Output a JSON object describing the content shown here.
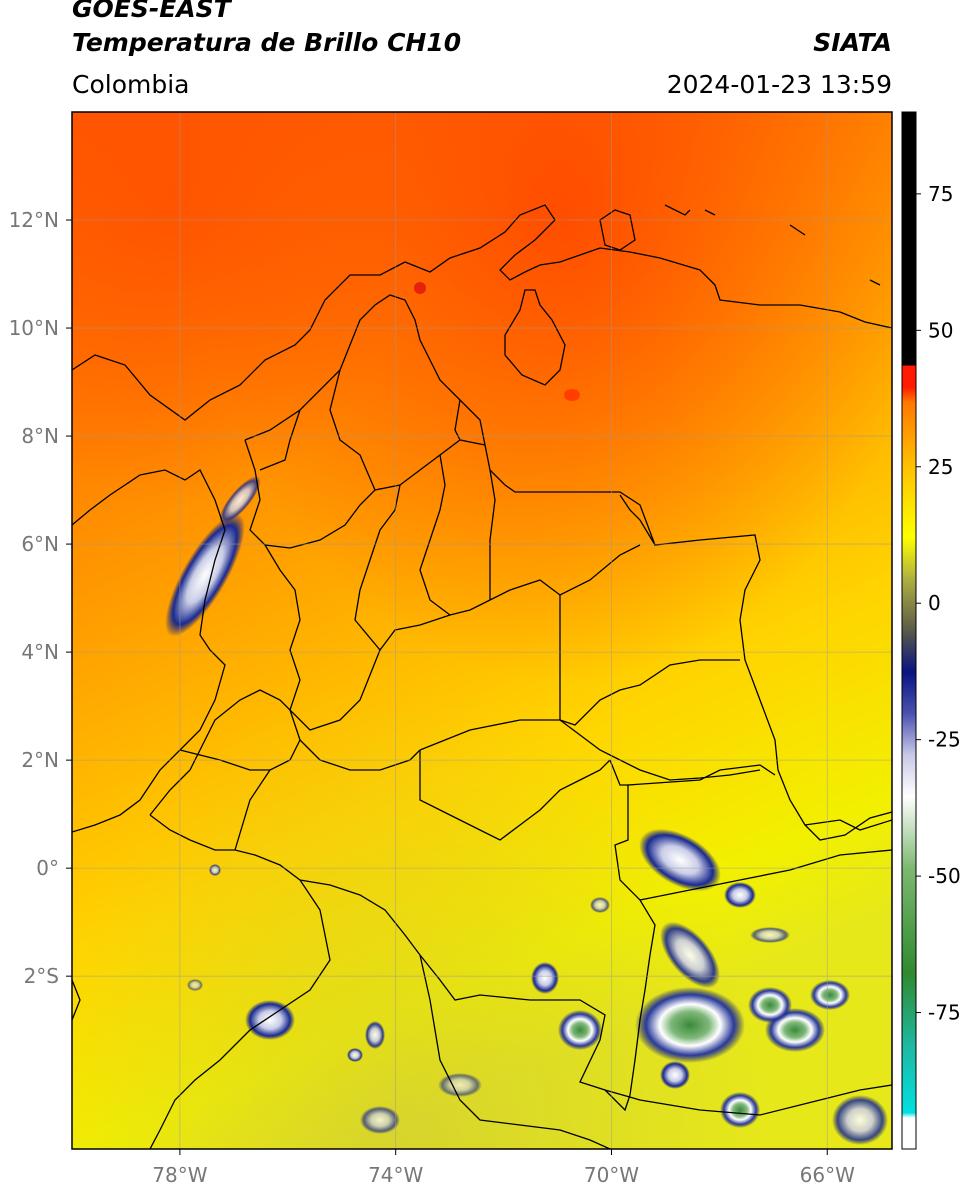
{
  "header": {
    "satellite": "GOES-EAST",
    "product": "Temperatura de Brillo CH10",
    "region": "Colombia",
    "agency": "SIATA",
    "datetime": "2024-01-23 13:59"
  },
  "map": {
    "lon_range": [
      -80,
      -64.8
    ],
    "lat_range": [
      -5.2,
      14.0
    ],
    "lon_ticks": [
      "78°W",
      "74°W",
      "70°W",
      "66°W"
    ],
    "lon_tick_values": [
      -78,
      -74,
      -70,
      -66
    ],
    "lat_ticks": [
      "12°N",
      "10°N",
      "8°N",
      "6°N",
      "4°N",
      "2°N",
      "0°",
      "2°S"
    ],
    "lat_tick_values": [
      12,
      10,
      8,
      6,
      4,
      2,
      0,
      -2
    ],
    "grid": true,
    "grid_color": "#9a9a9a"
  },
  "colorbar": {
    "ticks": [
      "75",
      "50",
      "25",
      "0",
      "-25",
      "-50",
      "-75"
    ],
    "tick_values": [
      75,
      50,
      25,
      0,
      -25,
      -50,
      -75
    ],
    "range": [
      -100,
      90
    ],
    "colors": {
      "black": "#000000",
      "red": "#ff1a00",
      "orange": "#ff8c00",
      "yellow": "#ffff00",
      "olive": "#8a8a3a",
      "navy": "#0a1480",
      "white": "#ffffff",
      "green": "#2f8a2f",
      "cyan": "#00e0e0"
    }
  }
}
